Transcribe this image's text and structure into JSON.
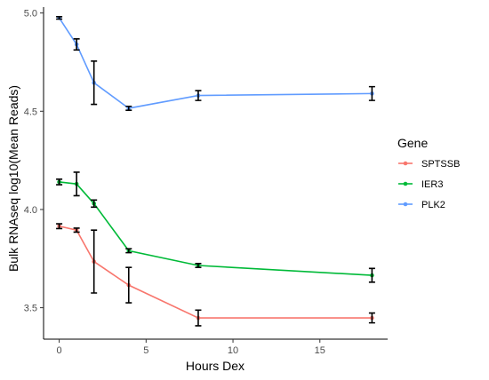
{
  "chart_data": {
    "type": "line",
    "xlabel": "Hours Dex",
    "ylabel": "Bulk RNAseq log10(Mean Reads)",
    "xlim": [
      -0.9,
      18.9
    ],
    "ylim": [
      3.34,
      5.03
    ],
    "x_ticks": [
      0,
      5,
      10,
      15
    ],
    "y_ticks": [
      3.5,
      4.0,
      4.5,
      5.0
    ],
    "x_tick_labels": [
      "0",
      "5",
      "10",
      "15"
    ],
    "y_tick_labels": [
      "3.5",
      "4.0",
      "4.5",
      "5.0"
    ],
    "grid": false,
    "legend": {
      "title": "Gene",
      "position": "right"
    },
    "series": [
      {
        "name": "SPTSSB",
        "color": "#F8766D",
        "points": [
          {
            "x": 0,
            "y": 3.915,
            "err": 0.012
          },
          {
            "x": 1,
            "y": 3.895,
            "err": 0.01
          },
          {
            "x": 2,
            "y": 3.735,
            "err": 0.16
          },
          {
            "x": 4,
            "y": 3.615,
            "err": 0.09
          },
          {
            "x": 8,
            "y": 3.448,
            "err": 0.04
          },
          {
            "x": 18,
            "y": 3.448,
            "err": 0.025
          }
        ]
      },
      {
        "name": "IER3",
        "color": "#00BA38",
        "points": [
          {
            "x": 0,
            "y": 4.14,
            "err": 0.014
          },
          {
            "x": 1,
            "y": 4.13,
            "err": 0.06
          },
          {
            "x": 2,
            "y": 4.03,
            "err": 0.018
          },
          {
            "x": 4,
            "y": 3.79,
            "err": 0.01
          },
          {
            "x": 8,
            "y": 3.715,
            "err": 0.01
          },
          {
            "x": 18,
            "y": 3.665,
            "err": 0.035
          }
        ]
      },
      {
        "name": "PLK2",
        "color": "#619CFF",
        "points": [
          {
            "x": 0,
            "y": 4.975,
            "err": 0.006
          },
          {
            "x": 1,
            "y": 4.84,
            "err": 0.028
          },
          {
            "x": 2,
            "y": 4.645,
            "err": 0.11
          },
          {
            "x": 4,
            "y": 4.515,
            "err": 0.01
          },
          {
            "x": 8,
            "y": 4.58,
            "err": 0.025
          },
          {
            "x": 18,
            "y": 4.59,
            "err": 0.035
          }
        ]
      }
    ]
  }
}
